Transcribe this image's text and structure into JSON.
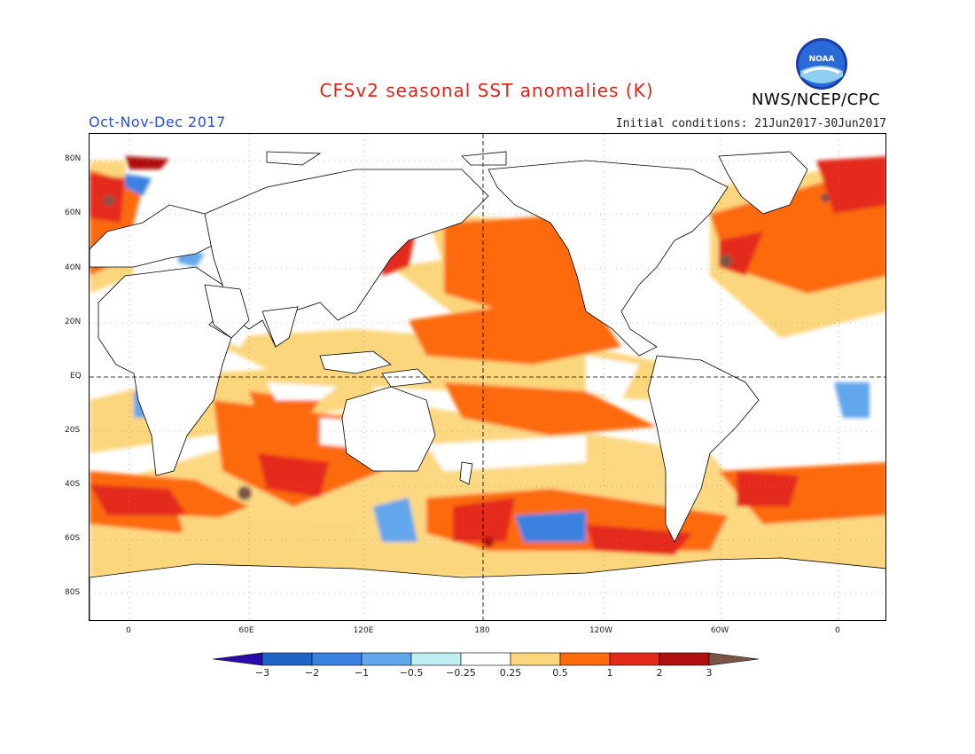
{
  "title": "CFSv2 seasonal SST anomalies (K)",
  "season": "Oct-Nov-Dec 2017",
  "initial_conditions": "Initial conditions: 21Jun2017-30Jun2017",
  "agency": "NWS/NCEP/CPC",
  "logo_text": "NOAA",
  "lat_labels": [
    "80N",
    "60N",
    "40N",
    "20N",
    "EQ",
    "20S",
    "40S",
    "60S",
    "80S"
  ],
  "lon_labels": [
    "0",
    "60E",
    "120E",
    "180",
    "120W",
    "60W",
    "0"
  ],
  "legend": {
    "labels": [
      "-3",
      "-2",
      "-1",
      "-0.5",
      "-0.25",
      "0.25",
      "0.5",
      "1",
      "2",
      "3"
    ],
    "colors": [
      "#2a0aa8",
      "#2064c8",
      "#3a82e0",
      "#62a6ec",
      "#bfeef2",
      "#ffffff",
      "#fcd67c",
      "#fc6a0c",
      "#e42a1a",
      "#b01010",
      "#7a5446"
    ]
  }
}
